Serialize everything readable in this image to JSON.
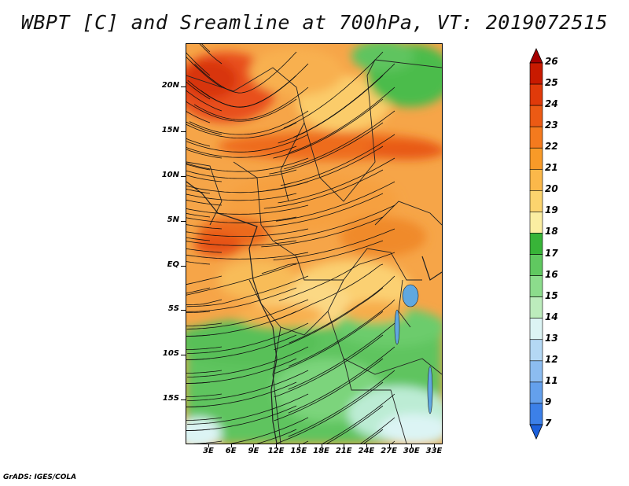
{
  "title": "WBPT [C] and Sreamline at 700hPa, VT: 2019072515",
  "credit": "GrADS: IGES/COLA",
  "latitude_labels": [
    "20N",
    "15N",
    "10N",
    "5N",
    "EQ",
    "5S",
    "10S",
    "15S"
  ],
  "longitude_labels": [
    "3E",
    "6E",
    "9E",
    "12E",
    "15E",
    "18E",
    "21E",
    "24E",
    "27E",
    "30E",
    "33E"
  ],
  "colorbar": {
    "levels": [
      "26",
      "25",
      "24",
      "23",
      "22",
      "21",
      "20",
      "19",
      "18",
      "17",
      "16",
      "15",
      "14",
      "13",
      "12",
      "11",
      "9",
      "7"
    ],
    "colors": [
      "#a50000",
      "#c81a00",
      "#e03a0a",
      "#ec5a14",
      "#f47a1e",
      "#f89a28",
      "#fbb84a",
      "#fcd46e",
      "#fbeea2",
      "#38b438",
      "#60c860",
      "#8cdc8c",
      "#bcecbc",
      "#dcf4f4",
      "#b4d8f4",
      "#8cbcf0",
      "#64a0ec",
      "#3c80e8",
      "#1c60dc"
    ]
  },
  "map": {
    "variable": "Wet-bulb potential temperature",
    "units": "C",
    "level": "700hPa",
    "valid_time": "2019072515",
    "region_note": "Tropical Africa, approx. 0E-35E, 22S-25N"
  }
}
